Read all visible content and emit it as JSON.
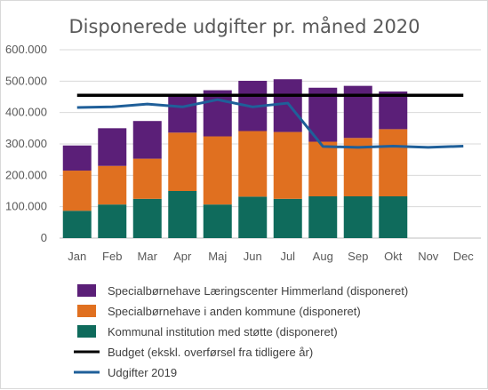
{
  "chart_data": {
    "type": "bar",
    "stacked": true,
    "title": "Disponerede udgifter pr. måned 2020",
    "xlabel": "",
    "ylabel": "",
    "categories": [
      "Jan",
      "Feb",
      "Mar",
      "Apr",
      "Maj",
      "Jun",
      "Jul",
      "Aug",
      "Sep",
      "Okt",
      "Nov",
      "Dec"
    ],
    "yticks": [
      "0",
      "100.000",
      "200.000",
      "300.000",
      "400.000",
      "500.000",
      "600.000"
    ],
    "ylim": [
      0,
      600000
    ],
    "grid": true,
    "legend_position": "bottom",
    "series": [
      {
        "name": "Kommunal institution med støtte (disponeret)",
        "kind": "bar",
        "color": "#0f6b5c",
        "values": [
          87000,
          107000,
          125000,
          150000,
          107000,
          132000,
          125000,
          133000,
          133000,
          133000,
          null,
          null
        ]
      },
      {
        "name": "Specialbørnehave i anden kommune (disponeret)",
        "kind": "bar",
        "color": "#e07020",
        "values": [
          128000,
          123000,
          128000,
          186000,
          217000,
          209000,
          213000,
          174000,
          186000,
          214000,
          null,
          null
        ]
      },
      {
        "name": "Specialbørnehave Læringscenter Himmerland (disponeret)",
        "kind": "bar",
        "color": "#5b1f78",
        "values": [
          80000,
          120000,
          120000,
          117000,
          147000,
          160000,
          168000,
          172000,
          166000,
          120000,
          null,
          null
        ]
      },
      {
        "name": "Budget (ekskl. overførsel fra tidligere år)",
        "kind": "line",
        "color": "#000000",
        "values": [
          455000,
          455000,
          455000,
          455000,
          455000,
          455000,
          455000,
          455000,
          455000,
          455000,
          455000,
          455000
        ]
      },
      {
        "name": "Udgifter 2019",
        "kind": "line",
        "color": "#1f5f99",
        "values": [
          416000,
          418000,
          427000,
          418000,
          441000,
          418000,
          430000,
          292000,
          289000,
          293000,
          289000,
          293000
        ]
      }
    ],
    "legend_order": [
      "Specialbørnehave Læringscenter Himmerland (disponeret)",
      "Specialbørnehave i anden kommune (disponeret)",
      "Kommunal institution med støtte (disponeret)",
      "Budget (ekskl. overførsel fra tidligere år)",
      "Udgifter 2019"
    ]
  }
}
